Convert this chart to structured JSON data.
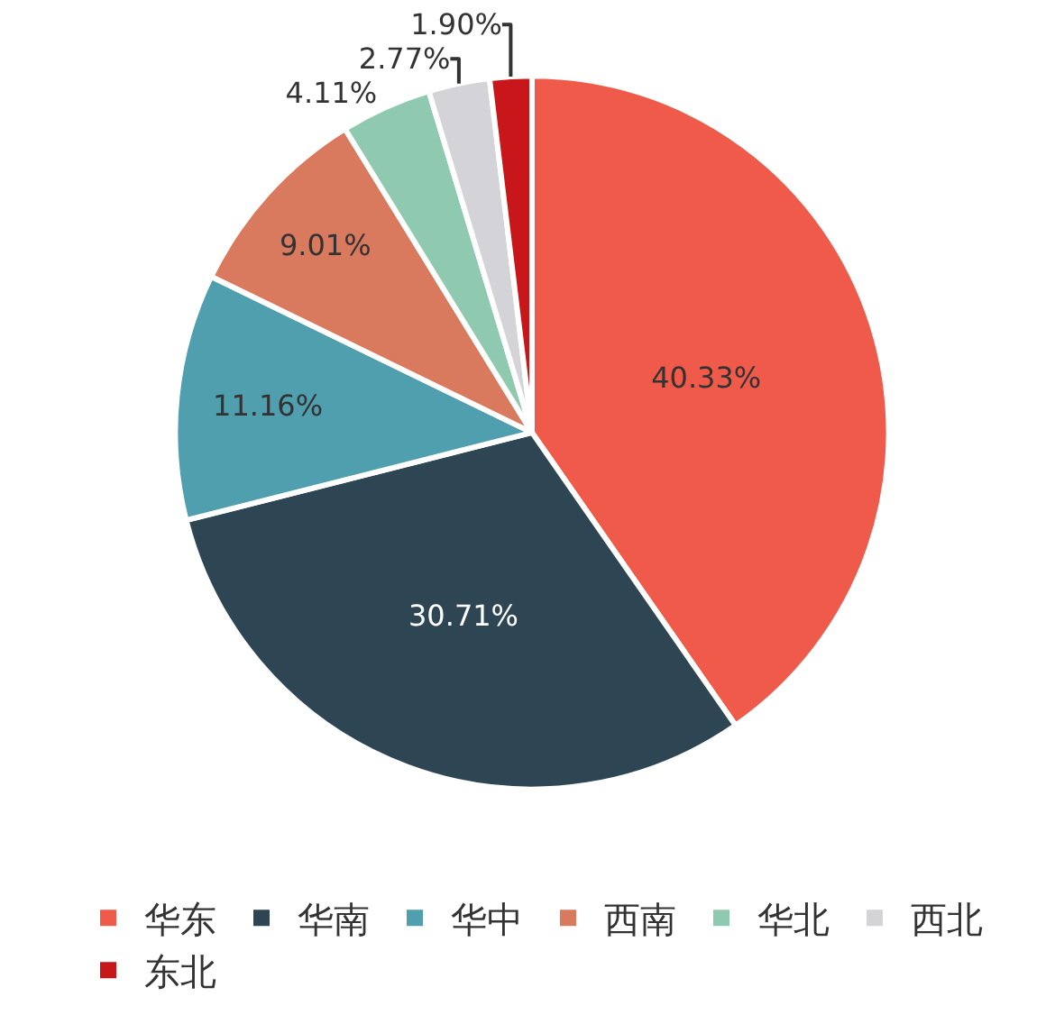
{
  "chart_data": {
    "type": "pie",
    "categories": [
      "华东",
      "华南",
      "华中",
      "西南",
      "华北",
      "西北",
      "东北"
    ],
    "values": [
      40.33,
      30.71,
      11.16,
      9.01,
      4.11,
      2.77,
      1.9
    ],
    "colors": [
      "#f05a4a",
      "#2e4553",
      "#4f9fae",
      "#d97a5e",
      "#8fcab0",
      "#d3d3d8",
      "#c8171b"
    ],
    "value_labels": [
      "40.33%",
      "30.71%",
      "11.16%",
      "9.01%",
      "4.11%",
      "2.77%",
      "1.90%"
    ],
    "legend": "bottom"
  }
}
